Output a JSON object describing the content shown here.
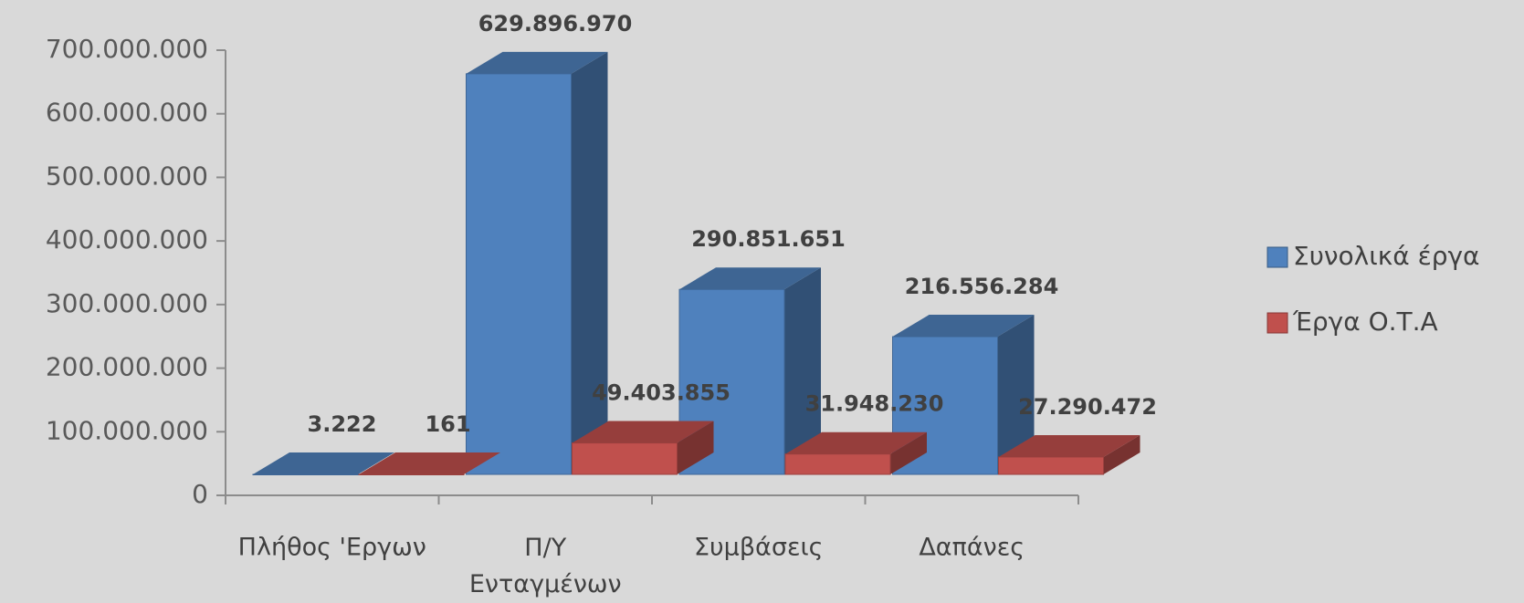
{
  "chart_data": {
    "type": "bar3d",
    "categories": [
      "Πλήθος 'Εργων",
      "Π/Υ Ενταγμένων",
      "Συμβάσεις",
      "Δαπάνες"
    ],
    "series": [
      {
        "name": "Συνολικά έργα",
        "color": "#4f81bd",
        "values": [
          3222,
          629896970,
          290851651,
          216556284
        ],
        "value_labels": [
          "3.222",
          "629.896.970",
          "290.851.651",
          "216.556.284"
        ]
      },
      {
        "name": "Έργα Ο.Τ.Α",
        "color": "#c0504d",
        "values": [
          161,
          49403855,
          31948230,
          27290472
        ],
        "value_labels": [
          "161",
          "49.403.855",
          "31.948.230",
          "27.290.472"
        ]
      }
    ],
    "ylim": [
      0,
      700000000
    ],
    "yticks": [
      0,
      {
        "value": 100000000,
        "label": "100.000.000"
      },
      {
        "value": 200000000,
        "label": "200.000.000"
      },
      {
        "value": 300000000,
        "label": "300.000.000"
      },
      {
        "value": 400000000,
        "label": "400.000.000"
      },
      {
        "value": 500000000,
        "label": "500.000.000"
      },
      {
        "value": 600000000,
        "label": "600.000.000"
      },
      {
        "value": 700000000,
        "label": "700.000.000"
      }
    ],
    "legend": "right"
  }
}
